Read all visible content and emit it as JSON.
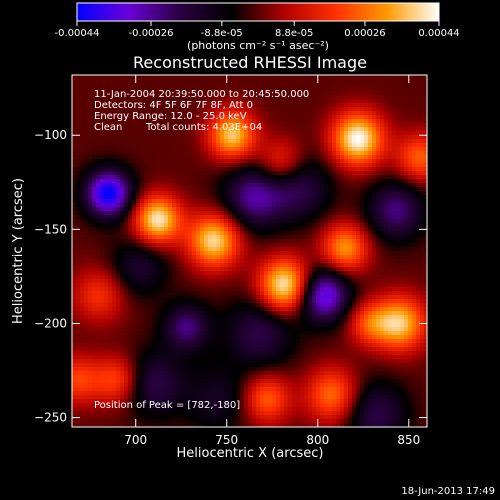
{
  "colorbar": {
    "tick_labels": [
      "-0.00044",
      "-0.00026",
      "-8.8e-05",
      "8.8e-05",
      "0.00026",
      "0.00044"
    ],
    "tick_values": [
      -0.00044,
      -0.00026,
      -8.8e-05,
      8.8e-05,
      0.00026,
      0.00044
    ],
    "units_label": "(photons cm⁻² s⁻¹ asec⁻²)",
    "range": [
      -0.00044,
      0.00044
    ],
    "colormap": [
      "#0000ff",
      "#6a00d8",
      "#2a0040",
      "#000000",
      "#b00000",
      "#ff3000",
      "#ff9a00",
      "#ffffff"
    ]
  },
  "chart_data": {
    "type": "heatmap",
    "title": "Reconstructed RHESSI Image",
    "xlabel": "Heliocentric X (arcsec)",
    "ylabel": "Heliocentric Y (arcsec)",
    "xlim": [
      665,
      860
    ],
    "ylim": [
      -255,
      -68
    ],
    "x_ticks": [
      700,
      750,
      800,
      850
    ],
    "y_ticks": [
      -100,
      -150,
      -200,
      -250
    ],
    "x_tick_labels": [
      "700",
      "750",
      "800",
      "850"
    ],
    "y_tick_labels": [
      "−100",
      "−150",
      "−200",
      "−250"
    ],
    "annotations": [
      "11-Jan-2004 20:39:50.000 to 20:45:50.000",
      "Detectors: 4F 5F 6F 7F 8F, Att 0",
      "Energy Range: 12.0 - 25.0 keV",
      "Clean",
      "Total counts: 4.03E+04"
    ],
    "peak_label": "Position of Peak = [782,-180]",
    "peak": [
      782,
      -180
    ],
    "blobs": [
      {
        "x": 685,
        "y": -131,
        "v": -1.0,
        "s": 9
      },
      {
        "x": 710,
        "y": -232,
        "v": -0.45,
        "s": 12
      },
      {
        "x": 728,
        "y": -202,
        "v": -0.55,
        "s": 9
      },
      {
        "x": 765,
        "y": -133,
        "v": -0.6,
        "s": 12
      },
      {
        "x": 790,
        "y": -128,
        "v": -0.45,
        "s": 12
      },
      {
        "x": 803,
        "y": -185,
        "v": -0.85,
        "s": 10
      },
      {
        "x": 843,
        "y": -140,
        "v": -0.55,
        "s": 11
      },
      {
        "x": 832,
        "y": -248,
        "v": -0.45,
        "s": 12
      },
      {
        "x": 768,
        "y": -205,
        "v": -0.45,
        "s": 13
      },
      {
        "x": 702,
        "y": -170,
        "v": -0.35,
        "s": 11
      },
      {
        "x": 745,
        "y": -240,
        "v": -0.3,
        "s": 12
      },
      {
        "x": 822,
        "y": -102,
        "v": 1.0,
        "s": 10
      },
      {
        "x": 782,
        "y": -180,
        "v": 1.0,
        "s": 10
      },
      {
        "x": 712,
        "y": -145,
        "v": 0.95,
        "s": 9
      },
      {
        "x": 743,
        "y": -156,
        "v": 0.9,
        "s": 10
      },
      {
        "x": 753,
        "y": -100,
        "v": 0.85,
        "s": 9
      },
      {
        "x": 845,
        "y": -200,
        "v": 0.85,
        "s": 10
      },
      {
        "x": 815,
        "y": -160,
        "v": 0.7,
        "s": 9
      },
      {
        "x": 808,
        "y": -238,
        "v": 0.6,
        "s": 10
      },
      {
        "x": 772,
        "y": -240,
        "v": 0.55,
        "s": 9
      },
      {
        "x": 690,
        "y": -230,
        "v": 0.5,
        "s": 9
      },
      {
        "x": 680,
        "y": -185,
        "v": 0.4,
        "s": 10
      },
      {
        "x": 668,
        "y": -230,
        "v": 0.45,
        "s": 9
      },
      {
        "x": 856,
        "y": -112,
        "v": 0.55,
        "s": 9
      },
      {
        "x": 828,
        "y": -200,
        "v": 0.45,
        "s": 8
      },
      {
        "x": 780,
        "y": -115,
        "v": 0.45,
        "s": 9
      }
    ]
  },
  "footer": {
    "timestamp": "18-Jun-2013 17:49"
  }
}
